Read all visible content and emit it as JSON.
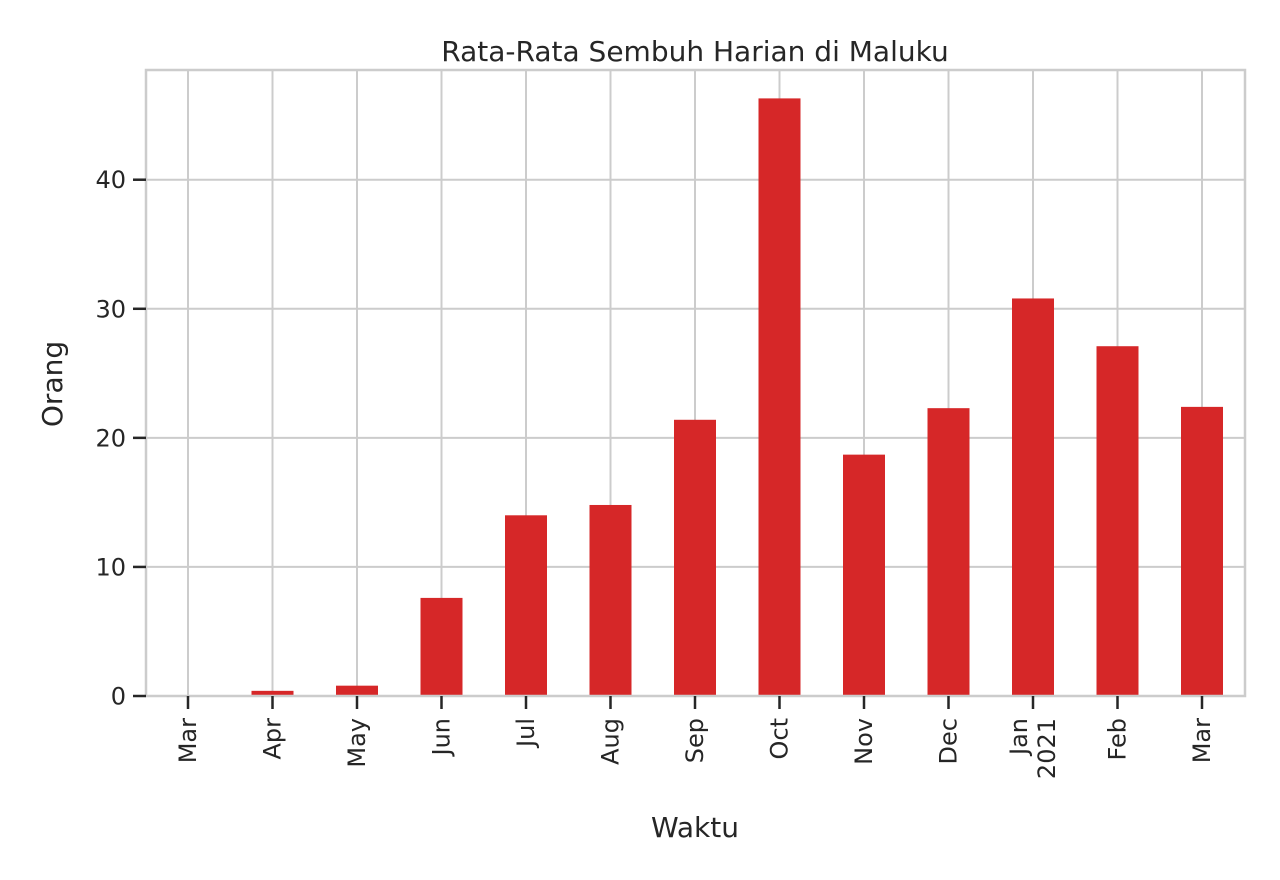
{
  "chart_data": {
    "type": "bar",
    "title": "Rata-Rata Sembuh Harian di Maluku",
    "xlabel": "Waktu",
    "ylabel": "Orang",
    "categories": [
      "Mar",
      "Apr",
      "May",
      "Jun",
      "Jul",
      "Aug",
      "Sep",
      "Oct",
      "Nov",
      "Dec",
      "Jan\n2021",
      "Feb",
      "Mar"
    ],
    "values": [
      0.0,
      0.4,
      0.8,
      7.6,
      14.0,
      14.8,
      21.4,
      46.3,
      18.7,
      22.3,
      30.8,
      27.1,
      22.4
    ],
    "ylim": [
      0,
      48.5
    ],
    "yticks": [
      0,
      10,
      20,
      30,
      40
    ],
    "grid": true,
    "bar_color": "#d62728",
    "grid_color": "#cccccc"
  }
}
